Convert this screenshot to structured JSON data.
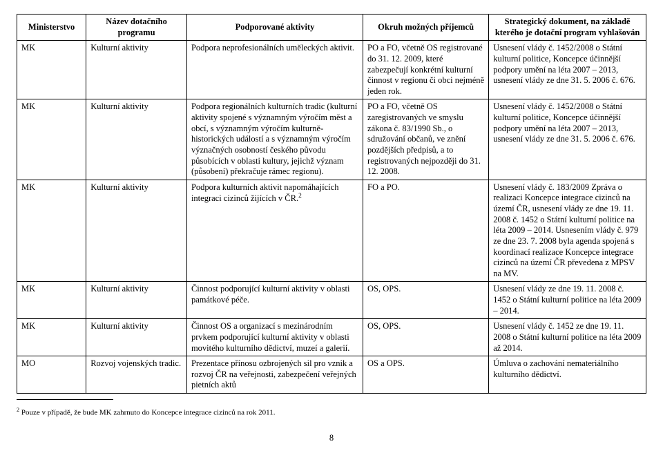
{
  "columns": {
    "c1": "Ministerstvo",
    "c2": "Název dotačního programu",
    "c3": "Podporované aktivity",
    "c4": "Okruh možných příjemců",
    "c5": "Strategický dokument, na základě kterého je dotační program vyhlašován"
  },
  "rows": [
    {
      "c1": "MK",
      "c2": "Kulturní aktivity",
      "c3": "Podpora neprofesionálních uměleckých aktivit.",
      "c4": "PO a FO, včetně OS registrované do 31. 12. 2009, které zabezpečují konkrétní kulturní činnost v regionu či obci nejméně jeden rok.",
      "c5": "Usnesení vlády č. 1452/2008 o Státní kulturní politice, Koncepce účinnější podpory umění na léta 2007 – 2013, usnesení vlády ze dne 31. 5. 2006 č. 676."
    },
    {
      "c1": "MK",
      "c2": "Kulturní aktivity",
      "c3": "Podpora regionálních kulturních tradic (kulturní aktivity spojené s významným výročím měst a obcí, s významným výročím kulturně-historických událostí a s významným výročím význačných osobností českého původu působících v oblasti kultury, jejichž význam (působení) překračuje rámec regionu).",
      "c4": "PO a FO, včetně OS zaregistrovaných ve smyslu zákona č. 83/1990 Sb., o sdružování občanů, ve znění pozdějších předpisů, a to registrovaných nejpozději do 31. 12. 2008.",
      "c5": "Usnesení vlády č. 1452/2008 o Státní kulturní politice, Koncepce účinnější podpory umění na léta 2007 – 2013, usnesení vlády ze dne 31. 5. 2006 č. 676."
    },
    {
      "c1": "MK",
      "c2": "Kulturní aktivity",
      "c3_html": "Podpora kulturních aktivit napomáhajících integraci cizinců žijících v ČR.<sup>2</sup>",
      "c4": "FO a PO.",
      "c5": "Usnesení vlády č. 183/2009 Zpráva o realizaci Koncepce integrace cizinců na území ČR, usnesení vlády ze dne 19. 11. 2008 č. 1452 o Státní kulturní politice na léta 2009 – 2014. Usnesením vlády č. 979 ze dne 23. 7. 2008 byla agenda spojená s koordinací realizace Koncepce integrace cizinců na území ČR převedena z MPSV na MV."
    },
    {
      "c1": "MK",
      "c2": "Kulturní aktivity",
      "c3": "Činnost podporující kulturní aktivity v oblasti památkové péče.",
      "c4": "OS, OPS.",
      "c5": "Usnesení vlády ze dne 19. 11. 2008 č. 1452 o Státní kulturní politice na léta 2009 – 2014."
    },
    {
      "c1": "MK",
      "c2": "Kulturní aktivity",
      "c3": "Činnost OS a organizací s mezinárodním prvkem podporující kulturní aktivity v oblasti movitého kulturního dědictví, muzeí a galerií.",
      "c4": "OS, OPS.",
      "c5": "Usnesení vlády č. 1452 ze dne 19. 11. 2008 o Státní kulturní politice na léta 2009 až 2014."
    },
    {
      "c1": "MO",
      "c2": "Rozvoj vojenských tradic.",
      "c3": "Prezentace přínosu ozbrojených sil pro vznik a rozvoj ČR na veřejnosti, zabezpečení veřejných pietních aktů",
      "c4": "OS a OPS.",
      "c5": "Úmluva o zachování nemateriálního kulturního dědictví."
    }
  ],
  "footnote_marker": "2",
  "footnote_text": " Pouze v případě, že bude MK zahrnuto do Koncepce integrace cizinců na rok 2011.",
  "page_number": "8"
}
